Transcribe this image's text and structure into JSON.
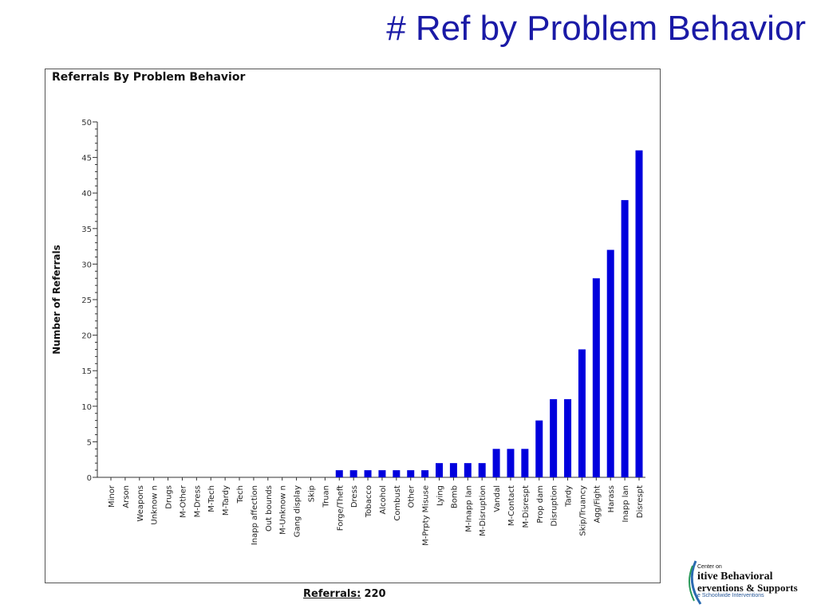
{
  "slide": {
    "title": "# Ref by Problem Behavior",
    "title_color": "#1a1aa6"
  },
  "footer": {
    "label": "Referrals:",
    "value": "220"
  },
  "logo": {
    "line1": "Center on",
    "line2": "itive Behavioral",
    "line3": "erventions & Supports",
    "line4": "e Schoolwide Interventions"
  },
  "chart_data": {
    "type": "bar",
    "title": "Referrals By Problem Behavior",
    "xlabel": "",
    "ylabel": "Number of Referrals",
    "ylim": [
      0,
      50
    ],
    "yticks": [
      0,
      5,
      10,
      15,
      20,
      25,
      30,
      35,
      40,
      45,
      50
    ],
    "grid": false,
    "bar_color": "#0000dd",
    "categories": [
      "Minor",
      "Arson",
      "Weapons",
      "Unknow n",
      "Drugs",
      "M-Other",
      "M-Dress",
      "M-Tech",
      "M-Tardy",
      "Tech",
      "Inapp affection",
      "Out bounds",
      "M-Unknow n",
      "Gang display",
      "Skip",
      "Truan",
      "Forge/Theft",
      "Dress",
      "Tobacco",
      "Alcohol",
      "Combust",
      "Other",
      "M-Prpty Misuse",
      "Lying",
      "Bomb",
      "M-Inapp lan",
      "M-Disruption",
      "Vandal",
      "M-Contact",
      "M-Disrespt",
      "Prop dam",
      "Disruption",
      "Tardy",
      "Skip/Truancy",
      "Agg/Fight",
      "Harass",
      "Inapp lan",
      "Disrespt"
    ],
    "values": [
      0,
      0,
      0,
      0,
      0,
      0,
      0,
      0,
      0,
      0,
      0,
      0,
      0,
      0,
      0,
      0,
      1,
      1,
      1,
      1,
      1,
      1,
      1,
      2,
      2,
      2,
      2,
      4,
      4,
      4,
      8,
      11,
      11,
      18,
      28,
      32,
      39,
      46
    ]
  }
}
